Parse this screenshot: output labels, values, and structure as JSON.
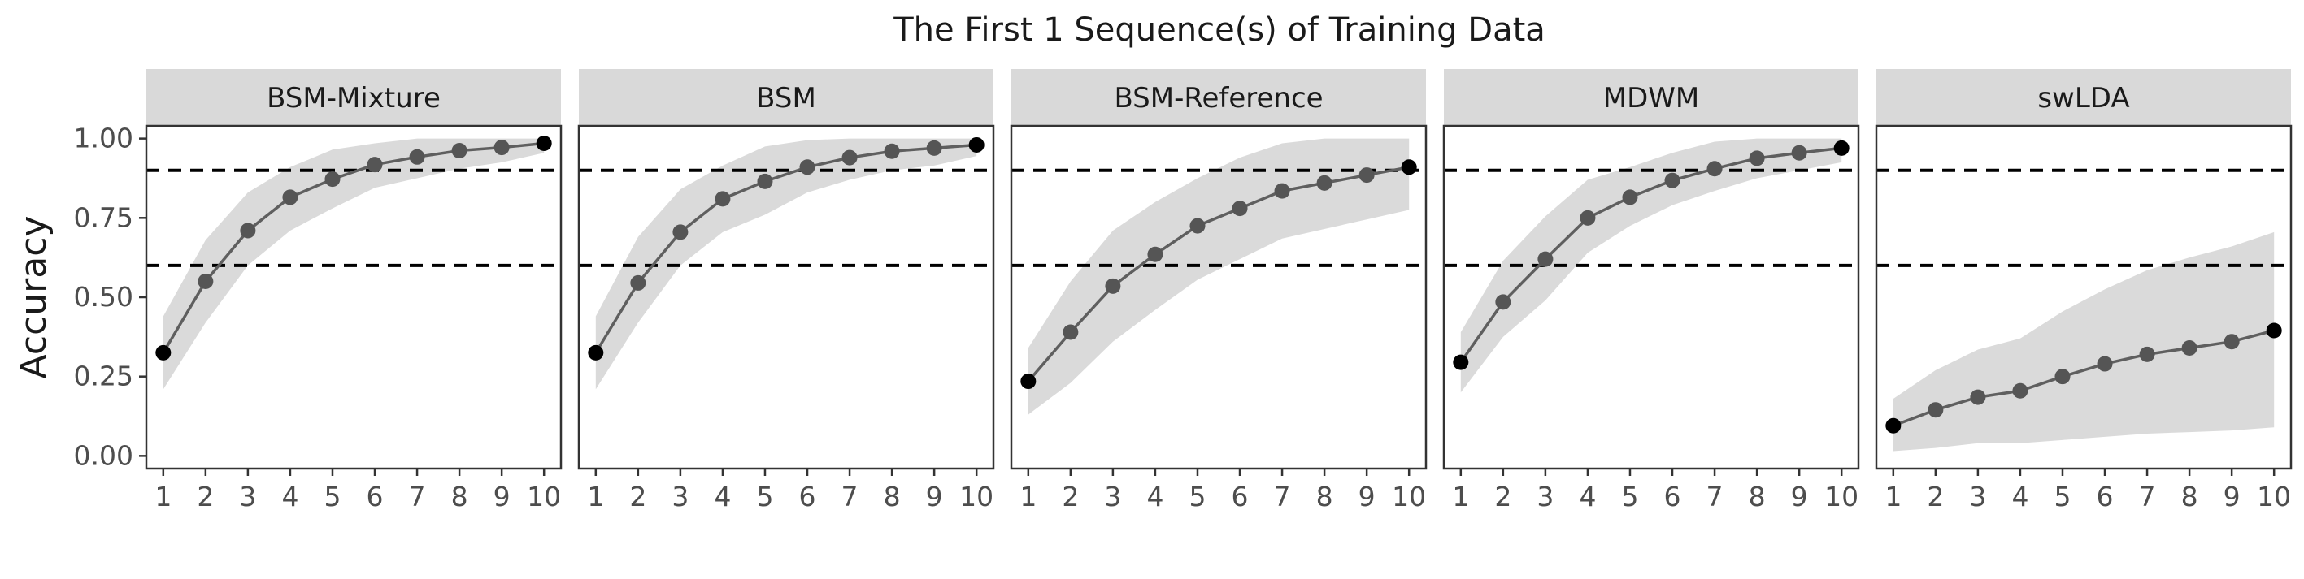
{
  "chart_data": {
    "type": "line",
    "title": "The First 1 Sequence(s) of Training Data",
    "ylabel": "Accuracy",
    "xlabel": "",
    "x": [
      1,
      2,
      3,
      4,
      5,
      6,
      7,
      8,
      9,
      10
    ],
    "x_tick_labels": [
      "1",
      "2",
      "3",
      "4",
      "5",
      "6",
      "7",
      "8",
      "9",
      "10"
    ],
    "y_ticks": [
      0.0,
      0.25,
      0.5,
      0.75,
      1.0
    ],
    "y_tick_labels": [
      "0.00",
      "0.25",
      "0.50",
      "0.75",
      "1.00"
    ],
    "ylim": [
      -0.04,
      1.04
    ],
    "xlim": [
      0.6,
      10.4
    ],
    "reference_lines": [
      0.6,
      0.9
    ],
    "reference_line_style": "dashed",
    "line_color": "#5f5f5f",
    "point_color": "#555555",
    "endpoint_color": "#000000",
    "ribbon_color": "#dadada",
    "strip_color": "#d9d9d9",
    "grid": false,
    "facets": [
      {
        "name": "BSM-Mixture",
        "values": [
          0.325,
          0.55,
          0.71,
          0.815,
          0.872,
          0.918,
          0.942,
          0.962,
          0.972,
          0.985
        ],
        "lower": [
          0.21,
          0.42,
          0.6,
          0.71,
          0.78,
          0.845,
          0.875,
          0.905,
          0.925,
          0.955
        ],
        "upper": [
          0.44,
          0.68,
          0.83,
          0.91,
          0.965,
          0.985,
          1.0,
          1.0,
          1.0,
          1.0
        ]
      },
      {
        "name": "BSM",
        "values": [
          0.325,
          0.545,
          0.705,
          0.81,
          0.865,
          0.91,
          0.94,
          0.96,
          0.97,
          0.98
        ],
        "lower": [
          0.21,
          0.42,
          0.6,
          0.705,
          0.76,
          0.83,
          0.87,
          0.9,
          0.915,
          0.945
        ],
        "upper": [
          0.44,
          0.69,
          0.84,
          0.915,
          0.975,
          0.995,
          1.0,
          1.0,
          1.0,
          1.0
        ]
      },
      {
        "name": "BSM-Reference",
        "values": [
          0.235,
          0.39,
          0.535,
          0.635,
          0.725,
          0.78,
          0.835,
          0.86,
          0.885,
          0.91
        ],
        "lower": [
          0.13,
          0.23,
          0.36,
          0.46,
          0.555,
          0.62,
          0.685,
          0.715,
          0.745,
          0.775
        ],
        "upper": [
          0.34,
          0.55,
          0.71,
          0.8,
          0.875,
          0.94,
          0.985,
          1.0,
          1.0,
          1.0
        ]
      },
      {
        "name": "MDWM",
        "values": [
          0.295,
          0.485,
          0.62,
          0.75,
          0.815,
          0.868,
          0.905,
          0.938,
          0.955,
          0.97
        ],
        "lower": [
          0.2,
          0.375,
          0.49,
          0.64,
          0.725,
          0.79,
          0.835,
          0.875,
          0.9,
          0.925
        ],
        "upper": [
          0.39,
          0.615,
          0.755,
          0.87,
          0.91,
          0.955,
          0.99,
          1.0,
          1.0,
          1.0
        ]
      },
      {
        "name": "swLDA",
        "values": [
          0.095,
          0.145,
          0.185,
          0.205,
          0.25,
          0.29,
          0.32,
          0.34,
          0.36,
          0.395
        ],
        "lower": [
          0.015,
          0.025,
          0.04,
          0.04,
          0.05,
          0.06,
          0.07,
          0.075,
          0.08,
          0.09
        ],
        "upper": [
          0.18,
          0.27,
          0.335,
          0.37,
          0.455,
          0.525,
          0.585,
          0.625,
          0.66,
          0.705
        ]
      }
    ]
  }
}
